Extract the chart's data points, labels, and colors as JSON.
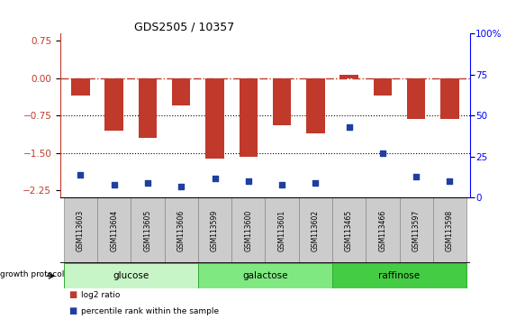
{
  "title": "GDS2505 / 10357",
  "samples": [
    "GSM113603",
    "GSM113604",
    "GSM113605",
    "GSM113606",
    "GSM113599",
    "GSM113600",
    "GSM113601",
    "GSM113602",
    "GSM113465",
    "GSM113466",
    "GSM113597",
    "GSM113598"
  ],
  "log2_ratio": [
    -0.35,
    -1.05,
    -1.2,
    -0.55,
    -1.62,
    -1.58,
    -0.95,
    -1.1,
    0.07,
    -0.35,
    -0.82,
    -0.82
  ],
  "percentile_rank": [
    14,
    8,
    9,
    7,
    12,
    10,
    8,
    9,
    43,
    27,
    13,
    10
  ],
  "bar_color": "#C0392B",
  "dot_color": "#1F3F9F",
  "hline_color": "#C0392B",
  "dotted_line_color": "#000000",
  "ylim_left": [
    -2.4,
    0.9
  ],
  "ylim_right": [
    0,
    100
  ],
  "yticks_left": [
    0.75,
    0.0,
    -0.75,
    -1.5,
    -2.25
  ],
  "yticks_right": [
    100,
    75,
    50,
    25,
    0
  ],
  "ytick_right_labels": [
    "100%",
    "75",
    "50",
    "25",
    "0"
  ],
  "dotted_hlines": [
    -0.75,
    -1.5
  ],
  "groups": [
    {
      "label": "glucose",
      "start": 0,
      "end": 4,
      "color": "#C8F5C8"
    },
    {
      "label": "galactose",
      "start": 4,
      "end": 8,
      "color": "#80E880"
    },
    {
      "label": "raffinose",
      "start": 8,
      "end": 12,
      "color": "#44CC44"
    }
  ],
  "growth_protocol_label": "growth protocol",
  "legend_red_label": "log2 ratio",
  "legend_blue_label": "percentile rank within the sample",
  "bar_width": 0.55,
  "sample_box_color": "#CCCCCC",
  "sample_box_edge": "#999999"
}
